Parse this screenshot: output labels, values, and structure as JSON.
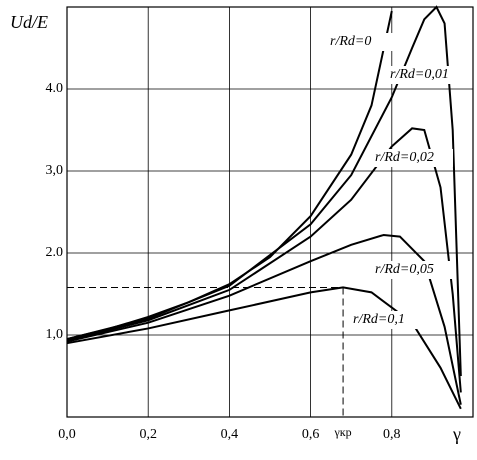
{
  "chart_data": {
    "type": "line",
    "ylabel": "Ud/E",
    "xlabel": "γ",
    "xlim": [
      0,
      1
    ],
    "ylim": [
      0,
      5
    ],
    "xticks": [
      {
        "value": 0,
        "label": "0,0"
      },
      {
        "value": 0.2,
        "label": "0,2"
      },
      {
        "value": 0.4,
        "label": "0,4"
      },
      {
        "value": 0.6,
        "label": "0,6"
      },
      {
        "value": 0.8,
        "label": "0,8"
      }
    ],
    "yticks": [
      {
        "value": 1,
        "label": "1,0"
      },
      {
        "value": 2,
        "label": "2.0"
      },
      {
        "value": 3,
        "label": "3,0"
      },
      {
        "value": 4,
        "label": "4.0"
      }
    ],
    "grid": true,
    "series": [
      {
        "name": "r/Rd=0",
        "color": "#000000",
        "x": [
          0,
          0.1,
          0.2,
          0.3,
          0.4,
          0.5,
          0.6,
          0.7,
          0.75,
          0.8
        ],
        "values": [
          0.95,
          1.07,
          1.22,
          1.4,
          1.62,
          1.95,
          2.45,
          3.2,
          3.8,
          4.95
        ]
      },
      {
        "name": "r/Rd=0,01",
        "color": "#000000",
        "x": [
          0,
          0.2,
          0.4,
          0.6,
          0.7,
          0.8,
          0.85,
          0.88,
          0.91,
          0.93,
          0.95,
          0.97
        ],
        "values": [
          0.95,
          1.2,
          1.6,
          2.35,
          2.95,
          3.9,
          4.5,
          4.85,
          5.0,
          4.8,
          3.5,
          0.5
        ]
      },
      {
        "name": "r/Rd=0,02",
        "color": "#000000",
        "x": [
          0,
          0.2,
          0.4,
          0.6,
          0.7,
          0.8,
          0.85,
          0.88,
          0.92,
          0.95,
          0.97
        ],
        "values": [
          0.93,
          1.18,
          1.55,
          2.2,
          2.65,
          3.3,
          3.52,
          3.5,
          2.8,
          1.5,
          0.3
        ]
      },
      {
        "name": "r/Rd=0,05",
        "color": "#000000",
        "x": [
          0,
          0.2,
          0.4,
          0.6,
          0.7,
          0.78,
          0.82,
          0.88,
          0.93,
          0.97
        ],
        "values": [
          0.92,
          1.15,
          1.48,
          1.9,
          2.1,
          2.22,
          2.2,
          1.9,
          1.1,
          0.15
        ]
      },
      {
        "name": "r/Rd=0,1",
        "color": "#000000",
        "x": [
          0,
          0.2,
          0.4,
          0.6,
          0.68,
          0.75,
          0.85,
          0.92,
          0.97
        ],
        "values": [
          0.9,
          1.08,
          1.3,
          1.52,
          1.58,
          1.52,
          1.15,
          0.6,
          0.1
        ]
      }
    ],
    "annotation": {
      "x": 0.68,
      "y": 1.58,
      "label": "γкр"
    }
  }
}
